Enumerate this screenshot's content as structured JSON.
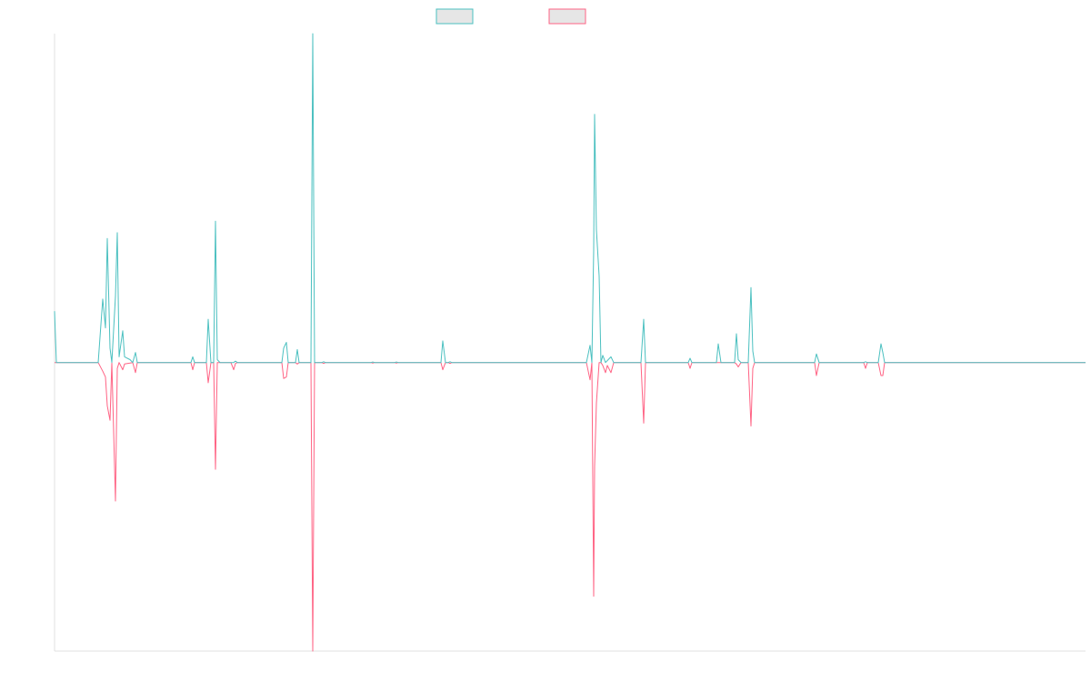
{
  "chart_data": {
    "type": "line",
    "title": "",
    "xlabel": "",
    "ylabel": "",
    "grid": false,
    "legend_placement": "top-center",
    "ylim": [
      -1,
      1.14
    ],
    "xlim": [
      0,
      1134
    ],
    "baseline": 0,
    "series": [
      {
        "color": "#4bc0c0",
        "legend_fill": "#e6e6e6",
        "points": [
          [
            0,
            0.178
          ],
          [
            2,
            0
          ],
          [
            48,
            0
          ],
          [
            53,
            0.22
          ],
          [
            56,
            0.12
          ],
          [
            58,
            0.43
          ],
          [
            61,
            0.05
          ],
          [
            63,
            0
          ],
          [
            67,
            0.23
          ],
          [
            69,
            0.45
          ],
          [
            71,
            0.02
          ],
          [
            75,
            0.11
          ],
          [
            77,
            0.02
          ],
          [
            83,
            0.01
          ],
          [
            86,
            0
          ],
          [
            89,
            0.035
          ],
          [
            91,
            0
          ],
          [
            94,
            0
          ],
          [
            150,
            0
          ],
          [
            152,
            0.02
          ],
          [
            154,
            0
          ],
          [
            167,
            0
          ],
          [
            169,
            0.15
          ],
          [
            172,
            0
          ],
          [
            175,
            0
          ],
          [
            177,
            0.49
          ],
          [
            179,
            0.01
          ],
          [
            182,
            0
          ],
          [
            194,
            0
          ],
          [
            197,
            0
          ],
          [
            199,
            0.005
          ],
          [
            201,
            0
          ],
          [
            250,
            0
          ],
          [
            252,
            0.05
          ],
          [
            255,
            0.07
          ],
          [
            257,
            0
          ],
          [
            265,
            0
          ],
          [
            267,
            0.045
          ],
          [
            269,
            0
          ],
          [
            282,
            0
          ],
          [
            284,
            1.14
          ],
          [
            286,
            0
          ],
          [
            294,
            0
          ],
          [
            296,
            0.003
          ],
          [
            298,
            0
          ],
          [
            348,
            0
          ],
          [
            350,
            0.002
          ],
          [
            352,
            0
          ],
          [
            374,
            0
          ],
          [
            376,
            0.002
          ],
          [
            378,
            0
          ],
          [
            425,
            0
          ],
          [
            427,
            0.075
          ],
          [
            430,
            0
          ],
          [
            433,
            0
          ],
          [
            435,
            0.003
          ],
          [
            437,
            0
          ],
          [
            585,
            0
          ],
          [
            589,
            0.06
          ],
          [
            591,
            0
          ],
          [
            593,
            0.39
          ],
          [
            594,
            0.86
          ],
          [
            596,
            0.46
          ],
          [
            599,
            0.3
          ],
          [
            601,
            0
          ],
          [
            603,
            0.025
          ],
          [
            606,
            0
          ],
          [
            612,
            0.02
          ],
          [
            615,
            0
          ],
          [
            645,
            0
          ],
          [
            648,
            0.15
          ],
          [
            650,
            0
          ],
          [
            697,
            0
          ],
          [
            699,
            0.015
          ],
          [
            701,
            0
          ],
          [
            728,
            0
          ],
          [
            730,
            0.065
          ],
          [
            733,
            0
          ],
          [
            748,
            0
          ],
          [
            750,
            0.1
          ],
          [
            752,
            0.01
          ],
          [
            755,
            0
          ],
          [
            763,
            0
          ],
          [
            766,
            0.26
          ],
          [
            768,
            0.04
          ],
          [
            770,
            0
          ],
          [
            836,
            0
          ],
          [
            838,
            0.03
          ],
          [
            841,
            0
          ],
          [
            890,
            0
          ],
          [
            892,
            0.003
          ],
          [
            894,
            0
          ],
          [
            906,
            0
          ],
          [
            909,
            0.065
          ],
          [
            911,
            0.035
          ],
          [
            913,
            0
          ],
          [
            1134,
            0
          ]
        ]
      },
      {
        "color": "#ff6384",
        "legend_fill": "#e6e6e6",
        "points": [
          [
            0,
            0
          ],
          [
            48,
            0
          ],
          [
            53,
            -0.03
          ],
          [
            56,
            -0.05
          ],
          [
            58,
            -0.15
          ],
          [
            61,
            -0.2
          ],
          [
            63,
            0
          ],
          [
            67,
            -0.48
          ],
          [
            69,
            -0.02
          ],
          [
            71,
            0
          ],
          [
            75,
            -0.025
          ],
          [
            77,
            -0.005
          ],
          [
            83,
            -0.002
          ],
          [
            86,
            0
          ],
          [
            89,
            -0.035
          ],
          [
            91,
            0
          ],
          [
            94,
            0
          ],
          [
            150,
            0
          ],
          [
            152,
            -0.025
          ],
          [
            154,
            0
          ],
          [
            167,
            0
          ],
          [
            169,
            -0.07
          ],
          [
            172,
            0
          ],
          [
            175,
            0
          ],
          [
            177,
            -0.37
          ],
          [
            179,
            0
          ],
          [
            182,
            0
          ],
          [
            194,
            0
          ],
          [
            197,
            -0.025
          ],
          [
            199,
            -0.003
          ],
          [
            201,
            0
          ],
          [
            250,
            0
          ],
          [
            252,
            -0.055
          ],
          [
            255,
            -0.05
          ],
          [
            257,
            0
          ],
          [
            265,
            0
          ],
          [
            267,
            -0.005
          ],
          [
            269,
            0
          ],
          [
            282,
            0
          ],
          [
            284,
            -1.0
          ],
          [
            286,
            0
          ],
          [
            294,
            0
          ],
          [
            296,
            -0.003
          ],
          [
            298,
            0
          ],
          [
            348,
            0
          ],
          [
            350,
            -0.002
          ],
          [
            352,
            0
          ],
          [
            374,
            0
          ],
          [
            376,
            -0.002
          ],
          [
            378,
            0
          ],
          [
            425,
            0
          ],
          [
            427,
            -0.025
          ],
          [
            430,
            0
          ],
          [
            433,
            0
          ],
          [
            435,
            -0.003
          ],
          [
            437,
            0
          ],
          [
            585,
            0
          ],
          [
            589,
            -0.06
          ],
          [
            591,
            0
          ],
          [
            593,
            -0.81
          ],
          [
            594,
            -0.36
          ],
          [
            596,
            -0.14
          ],
          [
            599,
            0
          ],
          [
            601,
            0
          ],
          [
            603,
            -0.01
          ],
          [
            606,
            -0.035
          ],
          [
            608,
            -0.01
          ],
          [
            612,
            -0.035
          ],
          [
            615,
            0
          ],
          [
            645,
            0
          ],
          [
            648,
            -0.21
          ],
          [
            650,
            0
          ],
          [
            697,
            0
          ],
          [
            699,
            -0.02
          ],
          [
            701,
            0
          ],
          [
            728,
            0
          ],
          [
            730,
            0
          ],
          [
            748,
            0
          ],
          [
            750,
            -0.005
          ],
          [
            752,
            -0.015
          ],
          [
            755,
            0
          ],
          [
            763,
            0
          ],
          [
            766,
            -0.22
          ],
          [
            768,
            -0.02
          ],
          [
            770,
            0
          ],
          [
            836,
            0
          ],
          [
            838,
            -0.045
          ],
          [
            841,
            0
          ],
          [
            890,
            0
          ],
          [
            892,
            -0.02
          ],
          [
            894,
            0
          ],
          [
            906,
            0
          ],
          [
            909,
            -0.045
          ],
          [
            911,
            -0.045
          ],
          [
            913,
            0
          ],
          [
            1134,
            0
          ]
        ]
      }
    ]
  }
}
